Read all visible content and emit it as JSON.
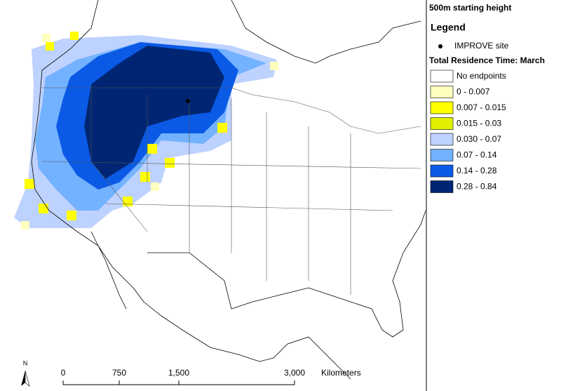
{
  "header": {
    "title": "500m starting height"
  },
  "legend": {
    "title": "Legend",
    "site": "IMPROVE site",
    "residence_title": "Total Residence Time: March",
    "classes": [
      {
        "label": "No endpoints",
        "color": "#ffffff"
      },
      {
        "label": "0 - 0.007",
        "color": "#ffffbe"
      },
      {
        "label": "0.007 - 0.015",
        "color": "#ffff00"
      },
      {
        "label": "0.015 - 0.03",
        "color": "#e1f000"
      },
      {
        "label": "0.030 - 0.07",
        "color": "#bed2ff"
      },
      {
        "label": "0.07 - 0.14",
        "color": "#73b2ff"
      },
      {
        "label": "0.14 - 0.28",
        "color": "#0a5ae6"
      },
      {
        "label": "0.28 - 0.84",
        "color": "#002673"
      }
    ]
  },
  "scale_bar": {
    "labels": [
      "0",
      "750",
      "1,500",
      "3,000"
    ],
    "unit": "Kilometers"
  },
  "north": "N"
}
